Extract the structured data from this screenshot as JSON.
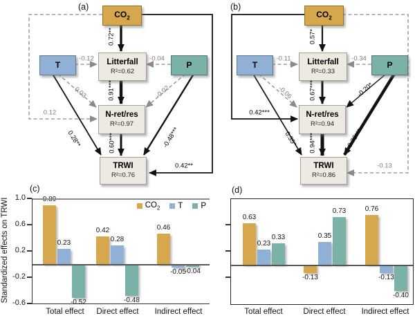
{
  "figure": {
    "panel_a_label": "(a)",
    "panel_b_label": "(b)",
    "panel_c_label": "(c)",
    "panel_d_label": "(d)"
  },
  "colors": {
    "co2": "#D7A74E",
    "t": "#91B0D5",
    "p": "#7AB2A8",
    "box": "#EFEAE1"
  },
  "sem_a": {
    "co2": {
      "text": "CO",
      "sub": "2"
    },
    "t_label": "T",
    "p_label": "P",
    "litterfall": {
      "name": "Litterfall",
      "r2": "R²=0.62"
    },
    "nretres": {
      "name": "N-ret/res",
      "r2": "R²=0.97"
    },
    "trwi": {
      "name": "TRWI",
      "r2": "R²=0.76"
    },
    "paths": {
      "co2_litterfall": "0.72**",
      "t_litterfall": "-0.12",
      "p_litterfall": "-0.04",
      "litterfall_nretres": "0.91***",
      "t_nretres": "0.03",
      "p_nretres": "-0.02",
      "co2_nretres": "0.12",
      "t_trwi": "0.28**",
      "nretres_trwi": "0.60***",
      "p_trwi": "-0.48***",
      "co2_trwi": "0.42**"
    }
  },
  "sem_b": {
    "co2": {
      "text": "CO",
      "sub": "2"
    },
    "t_label": "T",
    "p_label": "P",
    "litterfall": {
      "name": "Litterfall",
      "r2": "R²=0.33"
    },
    "nretres": {
      "name": "N-ret/res",
      "r2": "R²=0.94"
    },
    "trwi": {
      "name": "TRWI",
      "r2": "R²=0.86"
    },
    "paths": {
      "co2_litterfall": "0.57*",
      "t_litterfall": "-0.11",
      "p_litterfall": "-0.34",
      "litterfall_nretres": "0.67***",
      "t_nretres": "-0.06",
      "p_nretres": "-0.20*",
      "co2_nretres": "0.42***",
      "t_trwi": "0.35*",
      "nretres_trwi": "0.94***",
      "p_trwi": "0.73***",
      "co2_trwi": "-0.13"
    }
  },
  "charts": {
    "ylabel": "Standardized effects on TRWI",
    "yticks": [
      "1.0",
      "0.6",
      "0.2",
      "-0.2",
      "-0.6"
    ],
    "categories": [
      "Total effect",
      "Direct effect",
      "Indirect effect"
    ],
    "legend": [
      {
        "label": "CO",
        "sub": "2"
      },
      {
        "label": "T",
        "sub": ""
      },
      {
        "label": "P",
        "sub": ""
      }
    ]
  },
  "chart_data": [
    {
      "type": "bar",
      "panel": "c",
      "title": "",
      "xlabel": "",
      "ylabel": "Standardized effects on TRWI",
      "ylim": [
        -0.6,
        1.0
      ],
      "yticks": [
        1.0,
        0.6,
        0.2,
        -0.2,
        -0.6
      ],
      "grid": false,
      "legend_position": "top-right",
      "categories": [
        "Total effect",
        "Direct effect",
        "Indirect effect"
      ],
      "series": [
        {
          "name": "CO2",
          "color": "#D7A74E",
          "values": [
            0.89,
            0.42,
            0.46
          ]
        },
        {
          "name": "T",
          "color": "#91B0D5",
          "values": [
            0.23,
            0.28,
            -0.05
          ]
        },
        {
          "name": "P",
          "color": "#7AB2A8",
          "values": [
            -0.52,
            -0.48,
            -0.04
          ]
        }
      ]
    },
    {
      "type": "bar",
      "panel": "d",
      "title": "",
      "xlabel": "",
      "ylabel": "",
      "ylim": [
        -0.6,
        1.0
      ],
      "yticks": [
        1.0,
        0.6,
        0.2,
        -0.2,
        -0.6
      ],
      "grid": false,
      "legend_position": "none",
      "categories": [
        "Total effect",
        "Direct effect",
        "Indirect effect"
      ],
      "series": [
        {
          "name": "CO2",
          "color": "#D7A74E",
          "values": [
            0.63,
            -0.13,
            0.76
          ]
        },
        {
          "name": "T",
          "color": "#91B0D5",
          "values": [
            0.23,
            0.35,
            -0.13
          ]
        },
        {
          "name": "P",
          "color": "#7AB2A8",
          "values": [
            0.33,
            0.73,
            -0.4
          ]
        }
      ]
    }
  ]
}
